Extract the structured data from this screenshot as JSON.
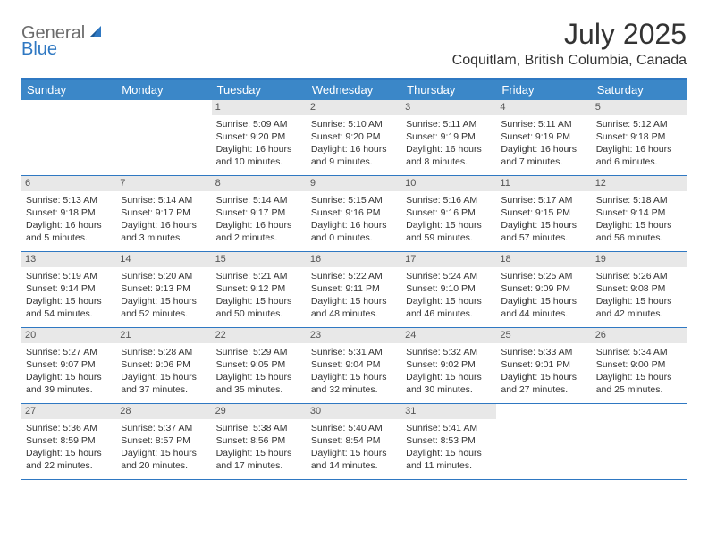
{
  "logo": {
    "part1": "General",
    "part2": "Blue"
  },
  "title": "July 2025",
  "location": "Coquitlam, British Columbia, Canada",
  "colors": {
    "header_bg": "#3b87c8",
    "border": "#2f78c2",
    "daynum_bg": "#e8e8e8",
    "text": "#333333",
    "logo_gray": "#6b6b6b",
    "logo_blue": "#2f78c2"
  },
  "day_headers": [
    "Sunday",
    "Monday",
    "Tuesday",
    "Wednesday",
    "Thursday",
    "Friday",
    "Saturday"
  ],
  "weeks": [
    [
      {
        "empty": true
      },
      {
        "empty": true
      },
      {
        "day": "1",
        "sunrise": "Sunrise: 5:09 AM",
        "sunset": "Sunset: 9:20 PM",
        "daylight": "Daylight: 16 hours and 10 minutes."
      },
      {
        "day": "2",
        "sunrise": "Sunrise: 5:10 AM",
        "sunset": "Sunset: 9:20 PM",
        "daylight": "Daylight: 16 hours and 9 minutes."
      },
      {
        "day": "3",
        "sunrise": "Sunrise: 5:11 AM",
        "sunset": "Sunset: 9:19 PM",
        "daylight": "Daylight: 16 hours and 8 minutes."
      },
      {
        "day": "4",
        "sunrise": "Sunrise: 5:11 AM",
        "sunset": "Sunset: 9:19 PM",
        "daylight": "Daylight: 16 hours and 7 minutes."
      },
      {
        "day": "5",
        "sunrise": "Sunrise: 5:12 AM",
        "sunset": "Sunset: 9:18 PM",
        "daylight": "Daylight: 16 hours and 6 minutes."
      }
    ],
    [
      {
        "day": "6",
        "sunrise": "Sunrise: 5:13 AM",
        "sunset": "Sunset: 9:18 PM",
        "daylight": "Daylight: 16 hours and 5 minutes."
      },
      {
        "day": "7",
        "sunrise": "Sunrise: 5:14 AM",
        "sunset": "Sunset: 9:17 PM",
        "daylight": "Daylight: 16 hours and 3 minutes."
      },
      {
        "day": "8",
        "sunrise": "Sunrise: 5:14 AM",
        "sunset": "Sunset: 9:17 PM",
        "daylight": "Daylight: 16 hours and 2 minutes."
      },
      {
        "day": "9",
        "sunrise": "Sunrise: 5:15 AM",
        "sunset": "Sunset: 9:16 PM",
        "daylight": "Daylight: 16 hours and 0 minutes."
      },
      {
        "day": "10",
        "sunrise": "Sunrise: 5:16 AM",
        "sunset": "Sunset: 9:16 PM",
        "daylight": "Daylight: 15 hours and 59 minutes."
      },
      {
        "day": "11",
        "sunrise": "Sunrise: 5:17 AM",
        "sunset": "Sunset: 9:15 PM",
        "daylight": "Daylight: 15 hours and 57 minutes."
      },
      {
        "day": "12",
        "sunrise": "Sunrise: 5:18 AM",
        "sunset": "Sunset: 9:14 PM",
        "daylight": "Daylight: 15 hours and 56 minutes."
      }
    ],
    [
      {
        "day": "13",
        "sunrise": "Sunrise: 5:19 AM",
        "sunset": "Sunset: 9:14 PM",
        "daylight": "Daylight: 15 hours and 54 minutes."
      },
      {
        "day": "14",
        "sunrise": "Sunrise: 5:20 AM",
        "sunset": "Sunset: 9:13 PM",
        "daylight": "Daylight: 15 hours and 52 minutes."
      },
      {
        "day": "15",
        "sunrise": "Sunrise: 5:21 AM",
        "sunset": "Sunset: 9:12 PM",
        "daylight": "Daylight: 15 hours and 50 minutes."
      },
      {
        "day": "16",
        "sunrise": "Sunrise: 5:22 AM",
        "sunset": "Sunset: 9:11 PM",
        "daylight": "Daylight: 15 hours and 48 minutes."
      },
      {
        "day": "17",
        "sunrise": "Sunrise: 5:24 AM",
        "sunset": "Sunset: 9:10 PM",
        "daylight": "Daylight: 15 hours and 46 minutes."
      },
      {
        "day": "18",
        "sunrise": "Sunrise: 5:25 AM",
        "sunset": "Sunset: 9:09 PM",
        "daylight": "Daylight: 15 hours and 44 minutes."
      },
      {
        "day": "19",
        "sunrise": "Sunrise: 5:26 AM",
        "sunset": "Sunset: 9:08 PM",
        "daylight": "Daylight: 15 hours and 42 minutes."
      }
    ],
    [
      {
        "day": "20",
        "sunrise": "Sunrise: 5:27 AM",
        "sunset": "Sunset: 9:07 PM",
        "daylight": "Daylight: 15 hours and 39 minutes."
      },
      {
        "day": "21",
        "sunrise": "Sunrise: 5:28 AM",
        "sunset": "Sunset: 9:06 PM",
        "daylight": "Daylight: 15 hours and 37 minutes."
      },
      {
        "day": "22",
        "sunrise": "Sunrise: 5:29 AM",
        "sunset": "Sunset: 9:05 PM",
        "daylight": "Daylight: 15 hours and 35 minutes."
      },
      {
        "day": "23",
        "sunrise": "Sunrise: 5:31 AM",
        "sunset": "Sunset: 9:04 PM",
        "daylight": "Daylight: 15 hours and 32 minutes."
      },
      {
        "day": "24",
        "sunrise": "Sunrise: 5:32 AM",
        "sunset": "Sunset: 9:02 PM",
        "daylight": "Daylight: 15 hours and 30 minutes."
      },
      {
        "day": "25",
        "sunrise": "Sunrise: 5:33 AM",
        "sunset": "Sunset: 9:01 PM",
        "daylight": "Daylight: 15 hours and 27 minutes."
      },
      {
        "day": "26",
        "sunrise": "Sunrise: 5:34 AM",
        "sunset": "Sunset: 9:00 PM",
        "daylight": "Daylight: 15 hours and 25 minutes."
      }
    ],
    [
      {
        "day": "27",
        "sunrise": "Sunrise: 5:36 AM",
        "sunset": "Sunset: 8:59 PM",
        "daylight": "Daylight: 15 hours and 22 minutes."
      },
      {
        "day": "28",
        "sunrise": "Sunrise: 5:37 AM",
        "sunset": "Sunset: 8:57 PM",
        "daylight": "Daylight: 15 hours and 20 minutes."
      },
      {
        "day": "29",
        "sunrise": "Sunrise: 5:38 AM",
        "sunset": "Sunset: 8:56 PM",
        "daylight": "Daylight: 15 hours and 17 minutes."
      },
      {
        "day": "30",
        "sunrise": "Sunrise: 5:40 AM",
        "sunset": "Sunset: 8:54 PM",
        "daylight": "Daylight: 15 hours and 14 minutes."
      },
      {
        "day": "31",
        "sunrise": "Sunrise: 5:41 AM",
        "sunset": "Sunset: 8:53 PM",
        "daylight": "Daylight: 15 hours and 11 minutes."
      },
      {
        "empty": true
      },
      {
        "empty": true
      }
    ]
  ]
}
